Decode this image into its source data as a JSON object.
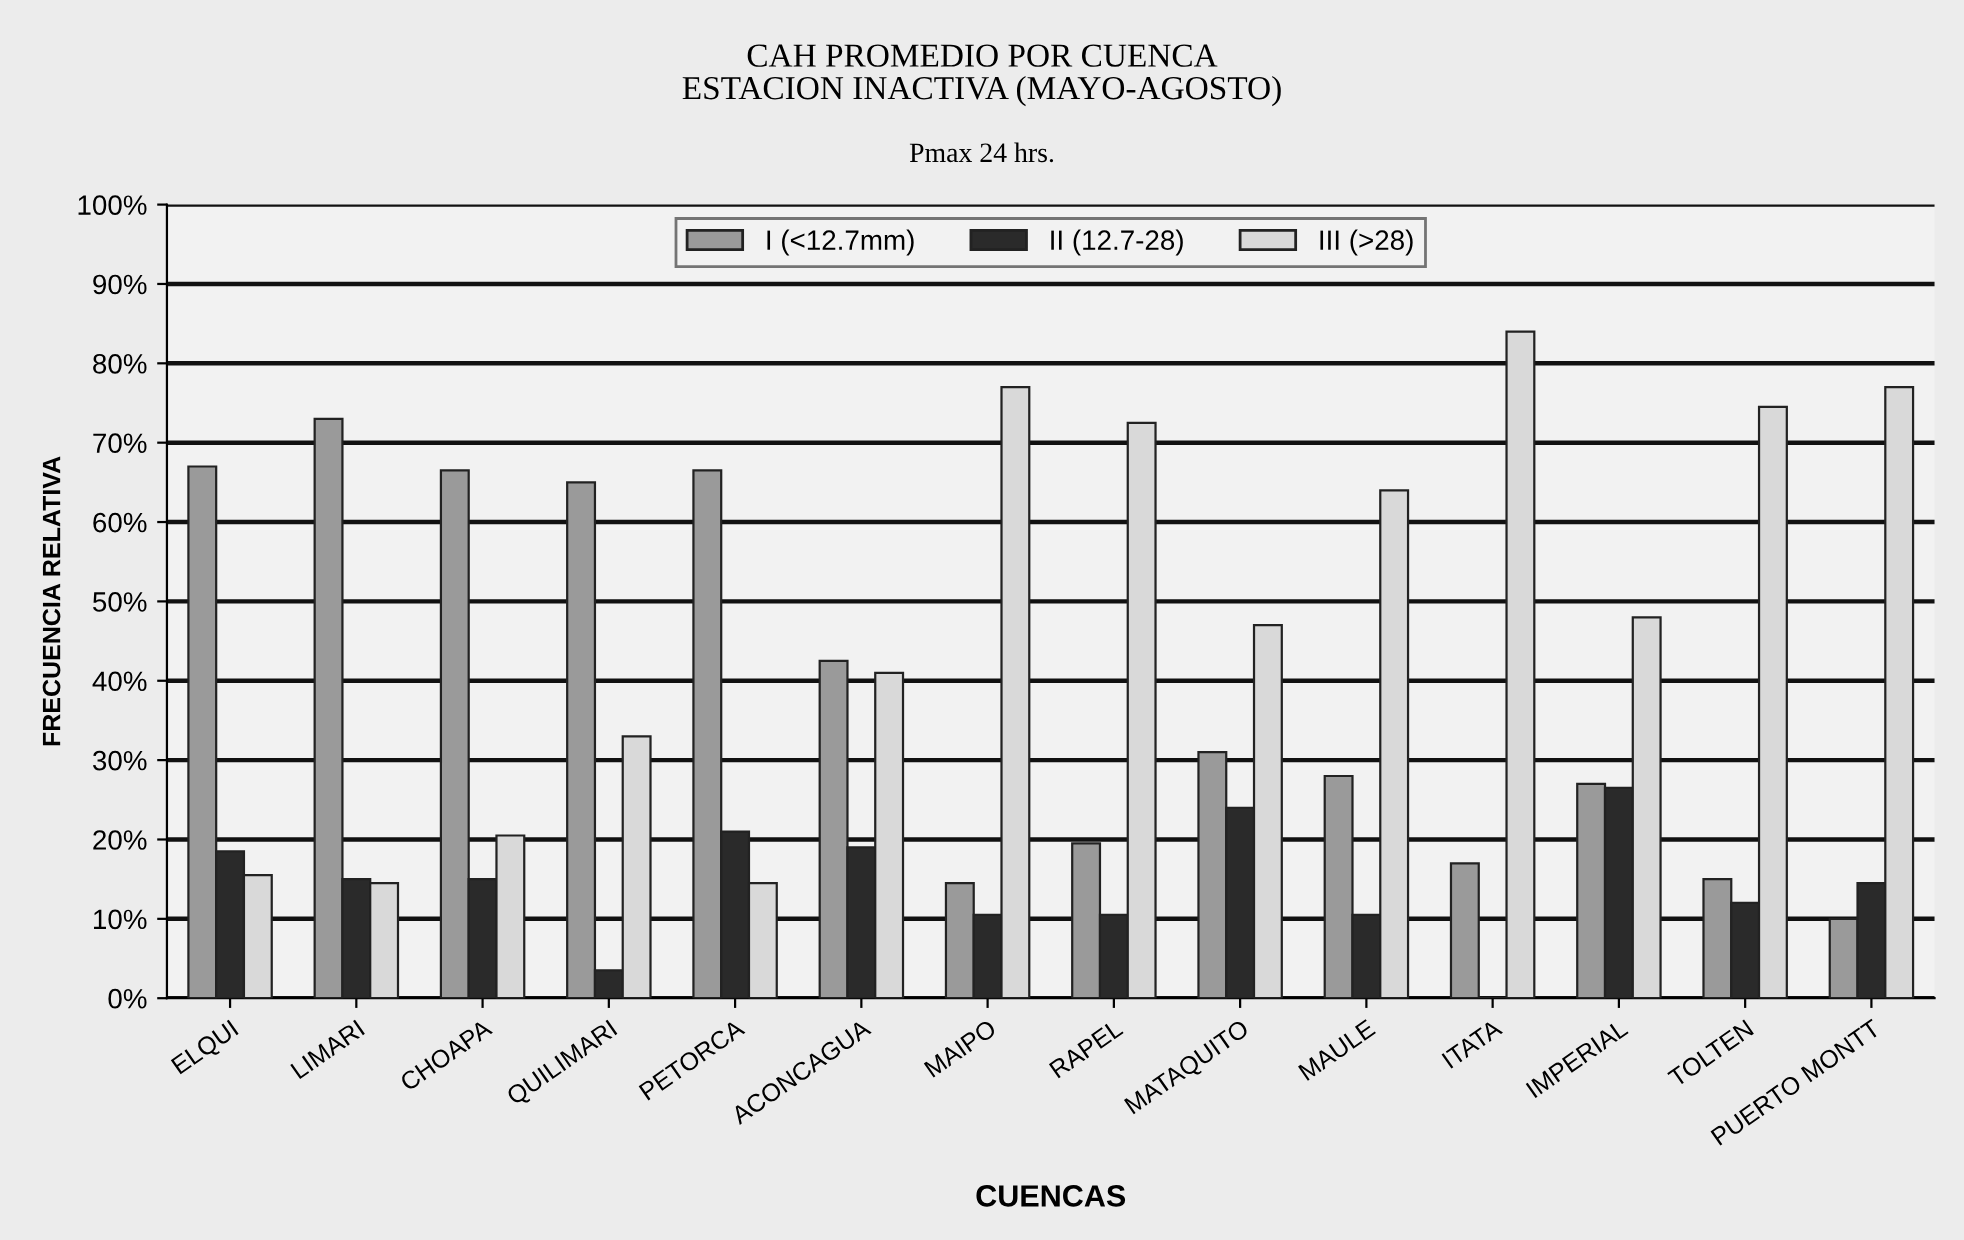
{
  "chart_data": {
    "type": "bar",
    "title": "CAH PROMEDIO POR CUENCA\nESTACION INACTIVA (MAYO-AGOSTO)",
    "subtitle": "Pmax 24 hrs.",
    "xlabel": "CUENCAS",
    "ylabel": "FRECUENCIA RELATIVA",
    "categories": [
      "ELQUI",
      "LIMARI",
      "CHOAPA",
      "QUILIMARI",
      "PETORCA",
      "ACONCAGUA",
      "MAIPO",
      "RAPEL",
      "MATAQUITO",
      "MAULE",
      "ITATA",
      "IMPERIAL",
      "TOLTEN",
      "PUERTO MONTT"
    ],
    "series": [
      {
        "name": "I (<12.7mm)",
        "color": "#9a9a9a",
        "values": [
          67,
          73,
          66.5,
          65,
          66.5,
          42.5,
          14.5,
          19.5,
          31,
          28,
          17,
          27,
          15,
          10
        ]
      },
      {
        "name": "II (12.7-28)",
        "color": "#2a2a2a",
        "values": [
          18.5,
          15,
          15,
          3.5,
          21,
          19,
          10.5,
          10.5,
          24,
          10.5,
          0,
          26.5,
          12,
          14.5
        ]
      },
      {
        "name": "III (>28)",
        "color": "#d9d9d9",
        "values": [
          15.5,
          14.5,
          20.5,
          33,
          14.5,
          41,
          77,
          72.5,
          47,
          64,
          84,
          48,
          74.5,
          77
        ]
      }
    ],
    "ylim": [
      0,
      100
    ],
    "yticks": [
      {
        "value": 0,
        "label": "0%"
      },
      {
        "value": 10,
        "label": "10%"
      },
      {
        "value": 20,
        "label": "20%"
      },
      {
        "value": 30,
        "label": "30%"
      },
      {
        "value": 40,
        "label": "40%"
      },
      {
        "value": 50,
        "label": "50%"
      },
      {
        "value": 60,
        "label": "60%"
      },
      {
        "value": 70,
        "label": "70%"
      },
      {
        "value": 80,
        "label": "80%"
      },
      {
        "value": 90,
        "label": "90%"
      },
      {
        "value": 100,
        "label": "100%"
      }
    ],
    "grid": "y",
    "legend": "top"
  }
}
